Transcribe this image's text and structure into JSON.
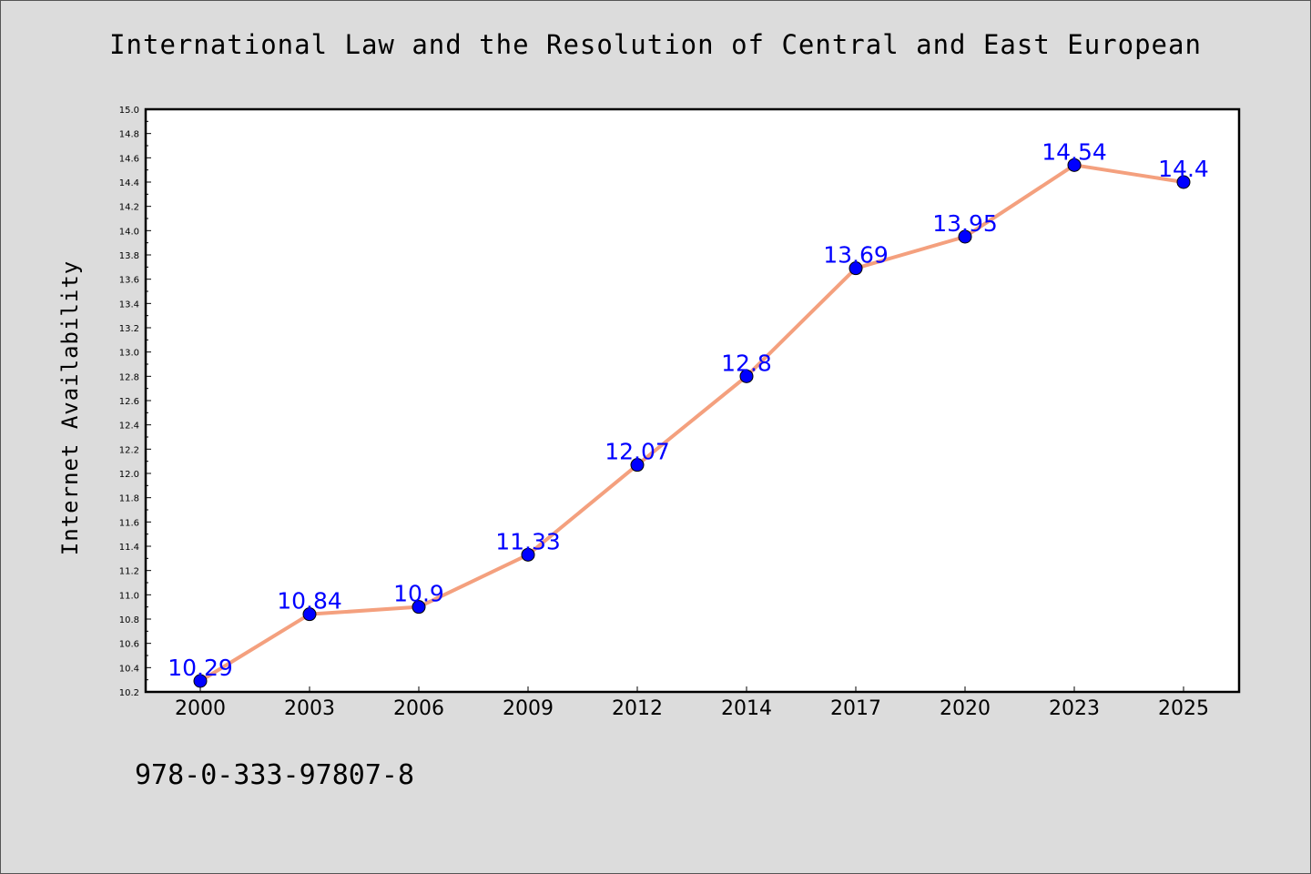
{
  "chart_data": {
    "type": "line",
    "title": "International Law and the Resolution of Central and East European",
    "xlabel": "",
    "ylabel": "Internet Availability",
    "categories": [
      "2000",
      "2003",
      "2006",
      "2009",
      "2012",
      "2014",
      "2017",
      "2020",
      "2023",
      "2025"
    ],
    "series": [
      {
        "values": [
          10.29,
          10.84,
          10.9,
          11.33,
          12.07,
          12.8,
          13.69,
          13.95,
          14.54,
          14.4
        ],
        "labels": [
          "10.29",
          "10.84",
          "10.9",
          "11.33",
          "12.07",
          "12.8",
          "13.69",
          "13.95",
          "14.54",
          "14.4"
        ]
      }
    ],
    "ylim": [
      10.2,
      15.0
    ],
    "yticks": [
      "10.2",
      "10.4",
      "10.6",
      "10.8",
      "11.0",
      "11.2",
      "11.4",
      "11.6",
      "11.8",
      "12.0",
      "12.2",
      "12.4",
      "12.6",
      "12.8",
      "13.0",
      "13.2",
      "13.4",
      "13.6",
      "13.8",
      "14.0",
      "14.2",
      "14.4",
      "14.6",
      "14.8",
      "15.0"
    ],
    "grid": false,
    "line_color": "#f4a07e",
    "marker_color": "#0000ff",
    "label_color": "#0000ff",
    "plot_background": "#ffffff",
    "page_background": "#dcdcdc"
  },
  "footer": {
    "code": "978-0-333-97807-8"
  }
}
